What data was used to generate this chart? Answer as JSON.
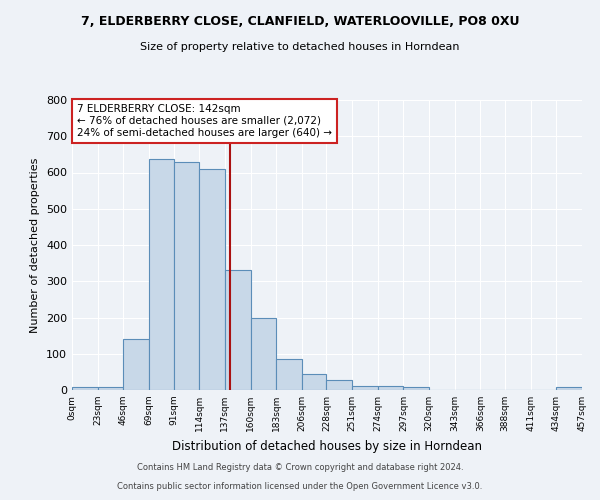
{
  "title1": "7, ELDERBERRY CLOSE, CLANFIELD, WATERLOOVILLE, PO8 0XU",
  "title2": "Size of property relative to detached houses in Horndean",
  "xlabel": "Distribution of detached houses by size in Horndean",
  "ylabel": "Number of detached properties",
  "annotation_line1": "7 ELDERBERRY CLOSE: 142sqm",
  "annotation_line2": "← 76% of detached houses are smaller (2,072)",
  "annotation_line3": "24% of semi-detached houses are larger (640) →",
  "footnote1": "Contains HM Land Registry data © Crown copyright and database right 2024.",
  "footnote2": "Contains public sector information licensed under the Open Government Licence v3.0.",
  "bin_edges": [
    0,
    23,
    46,
    69,
    91,
    114,
    137,
    160,
    183,
    206,
    228,
    251,
    274,
    297,
    320,
    343,
    366,
    388,
    411,
    434,
    457
  ],
  "bar_heights": [
    7,
    7,
    140,
    638,
    630,
    610,
    330,
    200,
    85,
    45,
    27,
    10,
    12,
    7,
    0,
    0,
    0,
    0,
    0,
    7
  ],
  "bar_color": "#c8d8e8",
  "bar_edge_color": "#5b8db8",
  "property_size": 142,
  "vline_color": "#aa1111",
  "background_color": "#eef2f7",
  "ylim": [
    0,
    800
  ],
  "yticks": [
    0,
    100,
    200,
    300,
    400,
    500,
    600,
    700,
    800
  ],
  "annotation_box_color": "#ffffff",
  "annotation_box_edge": "#cc2222",
  "fig_width": 6.0,
  "fig_height": 5.0,
  "dpi": 100
}
